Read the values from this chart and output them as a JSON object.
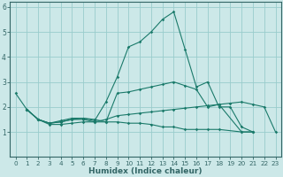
{
  "xlabel": "Humidex (Indice chaleur)",
  "bg_color": "#cce8e8",
  "grid_color": "#99cccc",
  "line_color": "#1a7a6a",
  "spine_color": "#336666",
  "xlim": [
    -0.5,
    23.5
  ],
  "ylim": [
    0,
    6.2
  ],
  "xticks": [
    0,
    1,
    2,
    3,
    4,
    5,
    6,
    7,
    8,
    9,
    10,
    11,
    12,
    13,
    14,
    15,
    16,
    17,
    18,
    19,
    20,
    21,
    22,
    23
  ],
  "yticks": [
    1,
    2,
    3,
    4,
    5,
    6
  ],
  "series": [
    {
      "x": [
        0,
        1,
        2,
        3,
        4,
        5,
        6,
        7,
        8,
        9,
        10,
        11,
        12,
        13,
        14,
        15,
        16,
        17,
        18,
        19,
        20,
        21
      ],
      "y": [
        2.55,
        1.9,
        1.5,
        1.35,
        1.45,
        1.55,
        1.55,
        1.45,
        2.2,
        3.2,
        4.4,
        4.6,
        5.0,
        5.5,
        5.8,
        4.3,
        2.8,
        3.0,
        2.0,
        2.0,
        1.2,
        1.0
      ]
    },
    {
      "x": [
        1,
        2,
        3,
        4,
        5,
        6,
        7,
        8,
        9,
        10,
        11,
        12,
        13,
        14,
        15,
        16,
        17,
        18,
        20,
        21
      ],
      "y": [
        1.9,
        1.5,
        1.35,
        1.4,
        1.5,
        1.55,
        1.5,
        1.4,
        2.55,
        2.6,
        2.7,
        2.8,
        2.9,
        3.0,
        2.85,
        2.7,
        2.0,
        2.1,
        1.0,
        1.0
      ]
    },
    {
      "x": [
        1,
        2,
        3,
        4,
        5,
        6,
        7,
        8,
        9,
        10,
        11,
        12,
        13,
        14,
        15,
        16,
        17,
        18,
        20,
        21
      ],
      "y": [
        1.9,
        1.5,
        1.35,
        1.4,
        1.5,
        1.5,
        1.4,
        1.4,
        1.4,
        1.35,
        1.35,
        1.3,
        1.2,
        1.2,
        1.1,
        1.1,
        1.1,
        1.1,
        1.0,
        1.0
      ]
    },
    {
      "x": [
        1,
        2,
        3,
        4,
        5,
        6,
        7,
        8,
        9,
        10,
        11,
        12,
        13,
        14,
        15,
        16,
        17,
        18,
        19,
        20,
        21,
        22,
        23
      ],
      "y": [
        1.9,
        1.5,
        1.3,
        1.3,
        1.35,
        1.4,
        1.4,
        1.5,
        1.65,
        1.7,
        1.75,
        1.8,
        1.85,
        1.9,
        1.95,
        2.0,
        2.05,
        2.1,
        2.15,
        2.2,
        2.1,
        2.0,
        1.0
      ]
    }
  ]
}
